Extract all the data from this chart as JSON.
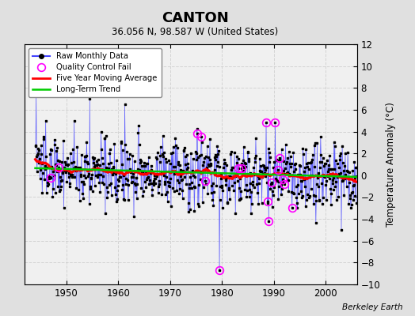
{
  "title": "CANTON",
  "subtitle": "36.056 N, 98.587 W (United States)",
  "ylabel": "Temperature Anomaly (°C)",
  "credit": "Berkeley Earth",
  "ylim": [
    -10,
    12
  ],
  "yticks": [
    -10,
    -8,
    -6,
    -4,
    -2,
    0,
    2,
    4,
    6,
    8,
    10,
    12
  ],
  "xlim": [
    1942,
    2006
  ],
  "xticks": [
    1950,
    1960,
    1970,
    1980,
    1990,
    2000
  ],
  "outer_bg": "#e0e0e0",
  "plot_bg": "#f0f0f0",
  "raw_line_color": "#4444ff",
  "raw_marker_color": "#000000",
  "qc_color": "#ff00ff",
  "moving_avg_color": "#ff0000",
  "trend_color": "#00cc00",
  "grid_color": "#cccccc",
  "seed": 137,
  "start_year": 1944.0,
  "n_years": 62
}
